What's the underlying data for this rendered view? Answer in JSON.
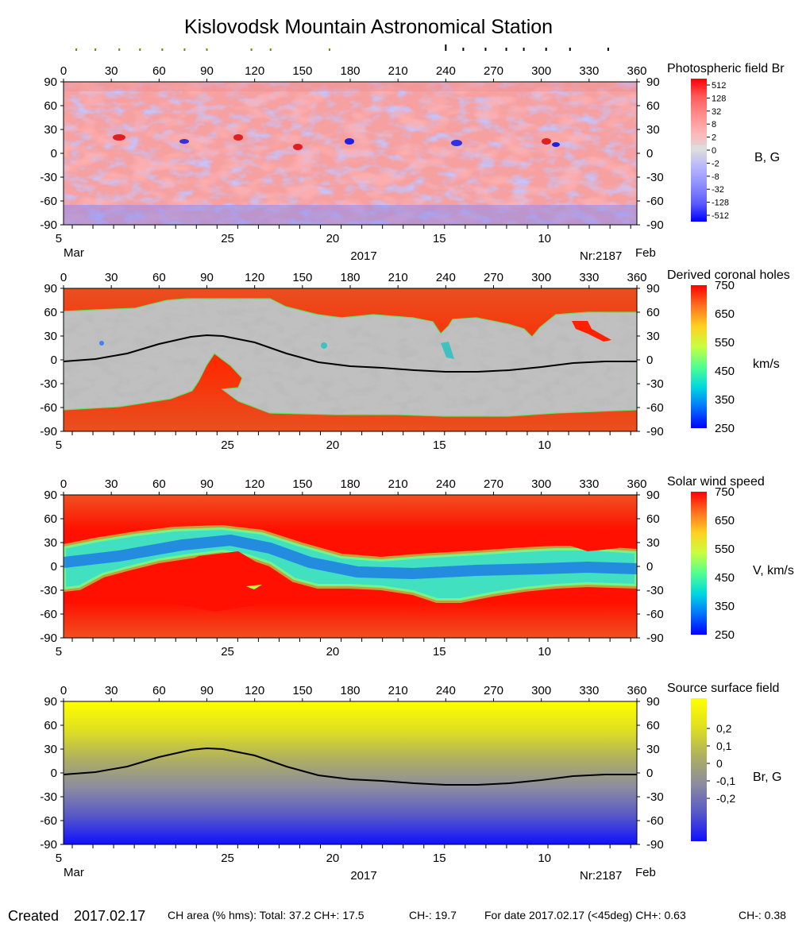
{
  "page": {
    "title": "Kislovodsk Mountain Astronomical Station"
  },
  "footer": {
    "created_label": "Created",
    "created_date": "2017.02.17",
    "ch_area": "CH area (% hms): Total: 37.2 CH+: 17.5",
    "ch_minus": "CH-: 19.7",
    "for_date": "For date 2017.02.17 (<45deg) CH+: 0.63",
    "for_date_minus": "CH-: 0.38"
  },
  "common": {
    "lon_ticks": [
      "0",
      "30",
      "60",
      "90",
      "120",
      "150",
      "180",
      "210",
      "240",
      "270",
      "300",
      "330",
      "360"
    ],
    "lat_ticks": [
      "90",
      "60",
      "30",
      "0",
      "-30",
      "-60",
      "-90"
    ],
    "date_labels": [
      {
        "text": "5",
        "lon": -3
      },
      {
        "text": "25",
        "lon": 103
      },
      {
        "text": "20",
        "lon": 169
      },
      {
        "text": "15",
        "lon": 236
      },
      {
        "text": "10",
        "lon": 302
      }
    ],
    "month_left": "Mar",
    "month_right": "Feb",
    "year": "2017",
    "rotation": "Nr:2187",
    "top_markers_olive": [
      8,
      20,
      35,
      48,
      62,
      76,
      90,
      118,
      130,
      167
    ],
    "top_markers_black": [
      240,
      251,
      265,
      278,
      289,
      303,
      318,
      342
    ]
  },
  "colors": {
    "wind_colorbar": [
      "#0000ff",
      "#0070ff",
      "#00d8e0",
      "#50ff90",
      "#c8ff40",
      "#ffd020",
      "#ff7020",
      "#ff0000"
    ],
    "ss_colorbar": [
      "#1010ff",
      "#5858c8",
      "#8c8ca0",
      "#b0b060",
      "#e0e020",
      "#ffff00"
    ],
    "field_colorbar": [
      "#0000ff",
      "#5a5aff",
      "#8c8cff",
      "#b4b4ff",
      "#dcdcdc",
      "#ffb4b4",
      "#ff8c8c",
      "#ff5a5a",
      "#ff0000"
    ],
    "neutral_line": "#000000",
    "ch_gray_light": "#c0c0c0",
    "ch_gray_dark": "#808080"
  },
  "chart_data": [
    {
      "type": "heatmap",
      "title": "Photospheric field Br",
      "unit_label": "B, G",
      "x_range": [
        0,
        360
      ],
      "y_range": [
        -90,
        90
      ],
      "colorbar_ticks": [
        "512",
        "128",
        "32",
        "8",
        "2",
        "0",
        "-2",
        "-8",
        "-32",
        "-128",
        "-512"
      ],
      "show_date_axis": true
    },
    {
      "type": "heatmap",
      "title": "Derived coronal holes",
      "unit_label": "km/s",
      "x_range": [
        0,
        360
      ],
      "y_range": [
        -90,
        90
      ],
      "colorbar_ticks": [
        "750",
        "650",
        "550",
        "450",
        "350",
        "250"
      ],
      "show_date_axis": false
    },
    {
      "type": "heatmap",
      "title": "Solar wind speed",
      "unit_label": "V, km/s",
      "x_range": [
        0,
        360
      ],
      "y_range": [
        -90,
        90
      ],
      "colorbar_ticks": [
        "750",
        "650",
        "550",
        "450",
        "350",
        "250"
      ],
      "show_date_axis": false
    },
    {
      "type": "heatmap",
      "title": "Source surface field",
      "unit_label": "Br, G",
      "x_range": [
        0,
        360
      ],
      "y_range": [
        -90,
        90
      ],
      "colorbar_ticks": [
        "0,2",
        "0,1",
        "0",
        "-0,1",
        "-0,2"
      ],
      "show_date_axis": true
    }
  ],
  "neutral_line": {
    "lon": [
      0,
      20,
      40,
      60,
      80,
      90,
      100,
      120,
      140,
      160,
      180,
      200,
      220,
      240,
      260,
      280,
      300,
      320,
      340,
      360
    ],
    "lat": [
      -2,
      1,
      8,
      20,
      29,
      31,
      30,
      22,
      8,
      -3,
      -8,
      -10,
      -13,
      -15,
      -15,
      -13,
      -9,
      -4,
      -2,
      -2
    ]
  }
}
